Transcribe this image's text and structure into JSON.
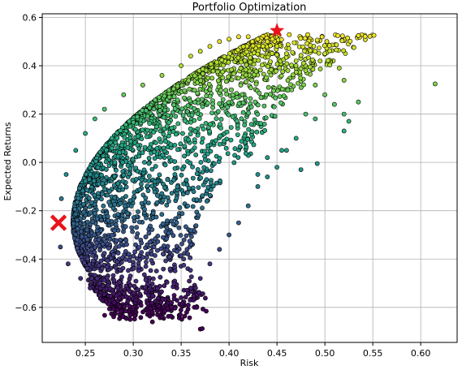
{
  "chart_data": {
    "type": "scatter",
    "title": "Portfolio Optimization",
    "xlabel": "Risk",
    "ylabel": "Expected Returns",
    "xlim": [
      0.205,
      0.638
    ],
    "ylim": [
      -0.745,
      0.615
    ],
    "xticks": [
      0.25,
      0.3,
      0.35,
      0.4,
      0.45,
      0.5,
      0.55,
      0.6
    ],
    "xtick_labels": [
      "0.25",
      "0.30",
      "0.35",
      "0.40",
      "0.45",
      "0.50",
      "0.55",
      "0.60"
    ],
    "yticks": [
      -0.6,
      -0.4,
      -0.2,
      0.0,
      0.2,
      0.4,
      0.6
    ],
    "ytick_labels": [
      "−0.6",
      "−0.4",
      "−0.2",
      "0.0",
      "0.2",
      "0.4",
      "0.6"
    ],
    "grid": true,
    "colormap": "viridis",
    "point_edge_color": "#000000",
    "cloud_points": [
      [
        0.222,
        -0.25
      ],
      [
        0.225,
        -0.15
      ],
      [
        0.224,
        -0.35
      ],
      [
        0.23,
        -0.05
      ],
      [
        0.232,
        -0.42
      ],
      [
        0.24,
        0.05
      ],
      [
        0.245,
        -0.48
      ],
      [
        0.25,
        0.12
      ],
      [
        0.255,
        -0.52
      ],
      [
        0.26,
        0.18
      ],
      [
        0.265,
        -0.55
      ],
      [
        0.27,
        0.22
      ],
      [
        0.28,
        -0.58
      ],
      [
        0.29,
        0.28
      ],
      [
        0.3,
        -0.6
      ],
      [
        0.31,
        0.32
      ],
      [
        0.32,
        -0.62
      ],
      [
        0.33,
        0.36
      ],
      [
        0.34,
        -0.58
      ],
      [
        0.35,
        0.4
      ],
      [
        0.36,
        0.44
      ],
      [
        0.37,
        0.46
      ],
      [
        0.38,
        0.48
      ],
      [
        0.39,
        0.5
      ],
      [
        0.4,
        0.51
      ],
      [
        0.41,
        0.52
      ],
      [
        0.42,
        0.52
      ],
      [
        0.43,
        0.51
      ],
      [
        0.44,
        0.5
      ],
      [
        0.45,
        0.48
      ],
      [
        0.46,
        0.45
      ],
      [
        0.47,
        0.42
      ],
      [
        0.48,
        0.38
      ],
      [
        0.49,
        0.32
      ],
      [
        0.5,
        0.28
      ],
      [
        0.51,
        0.24
      ],
      [
        0.52,
        0.2
      ],
      [
        0.535,
        0.25
      ],
      [
        0.535,
        0.525
      ],
      [
        0.502,
        0.5
      ],
      [
        0.495,
        0.42
      ],
      [
        0.48,
        0.2
      ],
      [
        0.47,
        0.1
      ],
      [
        0.46,
        0.05
      ],
      [
        0.45,
        -0.02
      ],
      [
        0.44,
        -0.06
      ],
      [
        0.43,
        -0.1
      ],
      [
        0.42,
        -0.18
      ],
      [
        0.41,
        -0.25
      ],
      [
        0.4,
        -0.3
      ],
      [
        0.39,
        -0.36
      ],
      [
        0.38,
        -0.42
      ],
      [
        0.37,
        -0.48
      ],
      [
        0.36,
        -0.52
      ],
      [
        0.35,
        -0.56
      ],
      [
        0.34,
        -0.6
      ],
      [
        0.33,
        -0.64
      ],
      [
        0.32,
        -0.66
      ],
      [
        0.37,
        -0.69
      ],
      [
        0.52,
        0.13
      ],
      [
        0.525,
        0.17
      ],
      [
        0.49,
        0.18
      ],
      [
        0.475,
        -0.03
      ],
      [
        0.455,
        0.05
      ],
      [
        0.492,
        -0.005
      ],
      [
        0.44,
        0.02
      ],
      [
        0.43,
        -0.05
      ],
      [
        0.5,
        0.45
      ],
      [
        0.515,
        0.39
      ],
      [
        0.52,
        0.34
      ]
    ],
    "outliers": [
      {
        "x": 0.615,
        "y": 0.325
      },
      {
        "x": 0.535,
        "y": 0.525
      },
      {
        "x": 0.372,
        "y": -0.688
      }
    ],
    "highlighted": [
      {
        "name": "max-sharpe-star",
        "marker": "star",
        "x": 0.45,
        "y": 0.545,
        "color": "#e8141b"
      },
      {
        "name": "min-risk-cross",
        "marker": "x",
        "x": 0.222,
        "y": -0.25,
        "color": "#e8141b"
      }
    ]
  }
}
